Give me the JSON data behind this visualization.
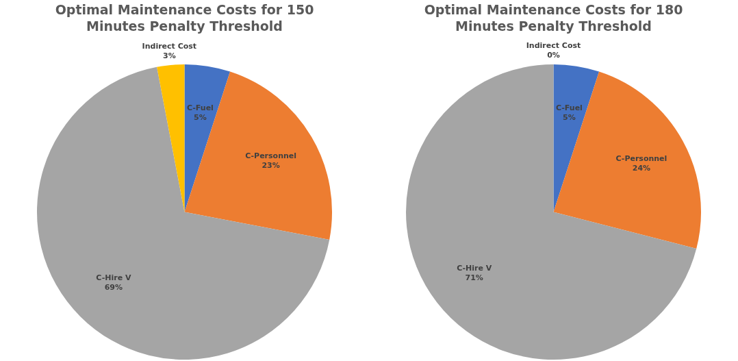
{
  "chart_data": [
    {
      "type": "pie",
      "title": "Optimal Maintenance Costs for 150 Minutes Penalty Threshold",
      "categories": [
        "C-Fuel",
        "C-Personnel",
        "C-Hire V",
        "Indirect Cost"
      ],
      "values": [
        5,
        23,
        69,
        3
      ],
      "colors": [
        "#4472c4",
        "#ed7d31",
        "#a5a5a5",
        "#ffc000"
      ],
      "value_labels": [
        "5%",
        "23%",
        "69%",
        "3%"
      ],
      "legend": false
    },
    {
      "type": "pie",
      "title": "Optimal Maintenance Costs for 180 Minutes Penalty Threshold",
      "categories": [
        "C-Fuel",
        "C-Personnel",
        "C-Hire V",
        "Indirect Cost"
      ],
      "values": [
        5,
        24,
        71,
        0
      ],
      "colors": [
        "#4472c4",
        "#ed7d31",
        "#a5a5a5",
        "#ffc000"
      ],
      "value_labels": [
        "5%",
        "24%",
        "71%",
        "0%"
      ],
      "legend": false
    }
  ]
}
